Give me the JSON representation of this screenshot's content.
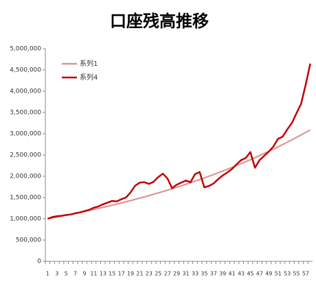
{
  "chart_data": {
    "type": "line",
    "title": "口座残高推移",
    "categories": [
      "1",
      null,
      "3",
      null,
      "5",
      null,
      "7",
      null,
      "9",
      null,
      "11",
      null,
      "13",
      null,
      "15",
      null,
      "17",
      null,
      "19",
      null,
      "21",
      null,
      "23",
      null,
      "25",
      null,
      "27",
      null,
      "29",
      null,
      "31",
      null,
      "33",
      null,
      "35",
      null,
      "37",
      null,
      "39",
      null,
      "41",
      null,
      "43",
      null,
      "45",
      null,
      "47",
      null,
      "49",
      null,
      "51",
      null,
      "53",
      null,
      "55",
      null,
      "57",
      null
    ],
    "series": [
      {
        "name": "系列1",
        "color": "#d99694",
        "values": [
          1000000,
          1020000,
          1040000,
          1061000,
          1082000,
          1104000,
          1126000,
          1149000,
          1172000,
          1195000,
          1219000,
          1243000,
          1268000,
          1294000,
          1319000,
          1346000,
          1373000,
          1400000,
          1428000,
          1457000,
          1486000,
          1516000,
          1546000,
          1577000,
          1608000,
          1641000,
          1673000,
          1707000,
          1741000,
          1776000,
          1811000,
          1848000,
          1885000,
          1922000,
          1961000,
          2000000,
          2040000,
          2081000,
          2122000,
          2165000,
          2208000,
          2252000,
          2297000,
          2343000,
          2390000,
          2438000,
          2487000,
          2536000,
          2587000,
          2639000,
          2692000,
          2745000,
          2800000,
          2856000,
          2913000,
          2972000,
          3031000,
          3092000
        ]
      },
      {
        "name": "系列4",
        "color": "#c00000",
        "values": [
          1000000,
          1040000,
          1060000,
          1070000,
          1090000,
          1100000,
          1130000,
          1150000,
          1180000,
          1210000,
          1260000,
          1290000,
          1340000,
          1380000,
          1420000,
          1410000,
          1460000,
          1500000,
          1620000,
          1780000,
          1850000,
          1860000,
          1820000,
          1870000,
          1980000,
          2060000,
          1950000,
          1720000,
          1800000,
          1850000,
          1900000,
          1860000,
          2050000,
          2100000,
          1740000,
          1770000,
          1830000,
          1930000,
          2020000,
          2090000,
          2170000,
          2280000,
          2380000,
          2430000,
          2570000,
          2200000,
          2380000,
          2480000,
          2580000,
          2700000,
          2880000,
          2930000,
          3100000,
          3250000,
          3480000,
          3700000,
          4150000,
          4650000
        ]
      }
    ],
    "ylim": [
      0,
      5000000
    ],
    "yticks": [
      0,
      {
        "value": 500000,
        "label": "500,000"
      },
      {
        "value": 1000000,
        "label": "1,000,000"
      },
      {
        "value": 1500000,
        "label": "1,500,000"
      },
      {
        "value": 2000000,
        "label": "2,000,000"
      },
      {
        "value": 2500000,
        "label": "2,500,000"
      },
      {
        "value": 3000000,
        "label": "3,000,000"
      },
      {
        "value": 3500000,
        "label": "3,500,000"
      },
      {
        "value": 4000000,
        "label": "4,000,000"
      },
      {
        "value": 4500000,
        "label": "4,500,000"
      },
      {
        "value": 5000000,
        "label": "5,000,000"
      }
    ],
    "grid": false,
    "legend": "upper left"
  }
}
